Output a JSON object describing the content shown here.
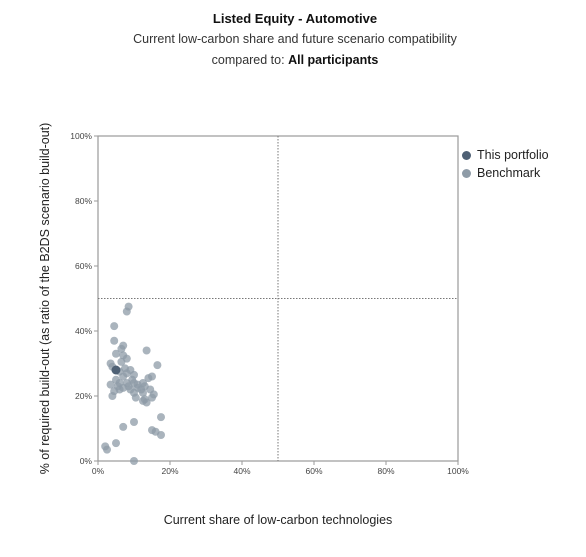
{
  "header": {
    "title": "Listed Equity - Automotive",
    "subtitle": "Current low-carbon share and future scenario compatibility",
    "compared_prefix": "compared to: ",
    "compared_value": "All participants"
  },
  "colors": {
    "portfolio": "#4f6175",
    "benchmark": "#8e9ba7"
  },
  "chart_data": {
    "type": "scatter",
    "xlabel": "Current share of low-carbon technologies",
    "ylabel": "% of required build-out (as ratio of the B2DS scenario build-out)",
    "xlim": [
      0,
      100
    ],
    "ylim": [
      0,
      100
    ],
    "x_ticks": [
      "0%",
      "20%",
      "40%",
      "60%",
      "80%",
      "100%"
    ],
    "y_ticks": [
      "0%",
      "20%",
      "40%",
      "60%",
      "80%",
      "100%"
    ],
    "reference_lines": {
      "x": 50,
      "y": 50
    },
    "legend_position": "right",
    "series": [
      {
        "name": "This portfolio",
        "points": [
          [
            5,
            28
          ]
        ]
      },
      {
        "name": "Benchmark",
        "points": [
          [
            8.5,
            47.5
          ],
          [
            8,
            46
          ],
          [
            4.5,
            41.5
          ],
          [
            4.5,
            37
          ],
          [
            7,
            35.5
          ],
          [
            6.5,
            34.5
          ],
          [
            13.5,
            34
          ],
          [
            5,
            33
          ],
          [
            7,
            32.5
          ],
          [
            8,
            31.5
          ],
          [
            6.5,
            30.5
          ],
          [
            3.5,
            30
          ],
          [
            4,
            29
          ],
          [
            7.5,
            28.5
          ],
          [
            9,
            28
          ],
          [
            16.5,
            29.5
          ],
          [
            6,
            27.5
          ],
          [
            8,
            27
          ],
          [
            10,
            26.5
          ],
          [
            7,
            26
          ],
          [
            9.5,
            25
          ],
          [
            14,
            25.5
          ],
          [
            15,
            26
          ],
          [
            5,
            25
          ],
          [
            3.5,
            23.5
          ],
          [
            6,
            24
          ],
          [
            8,
            24
          ],
          [
            10,
            24
          ],
          [
            11,
            23.5
          ],
          [
            12.5,
            24
          ],
          [
            5.5,
            23
          ],
          [
            7,
            22.5
          ],
          [
            9,
            22
          ],
          [
            11,
            22.5
          ],
          [
            13,
            23
          ],
          [
            14.5,
            22
          ],
          [
            6,
            22
          ],
          [
            8.5,
            23
          ],
          [
            12,
            22
          ],
          [
            4.5,
            21.5
          ],
          [
            10,
            21
          ],
          [
            12.5,
            21
          ],
          [
            15.5,
            20.5
          ],
          [
            4,
            20
          ],
          [
            10.5,
            19.5
          ],
          [
            13,
            19
          ],
          [
            15,
            19.5
          ],
          [
            12.5,
            18.5
          ],
          [
            13.5,
            18
          ],
          [
            17.5,
            13.5
          ],
          [
            10,
            12
          ],
          [
            7,
            10.5
          ],
          [
            15,
            9.5
          ],
          [
            16,
            9
          ],
          [
            17.5,
            8
          ],
          [
            5,
            5.5
          ],
          [
            2,
            4.5
          ],
          [
            2.5,
            3.5
          ],
          [
            10,
            0
          ]
        ]
      }
    ]
  }
}
